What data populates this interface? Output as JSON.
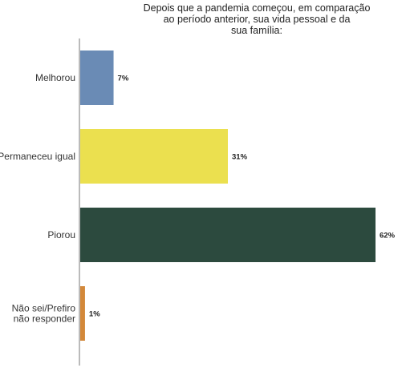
{
  "chart_data": {
    "type": "bar",
    "orientation": "horizontal",
    "title_lines": [
      "Depois que a pandemia começou, em comparação",
      "ao período anterior, sua vida pessoal e da",
      "sua família:"
    ],
    "categories": [
      [
        "Melhorou"
      ],
      [
        "Permaneceu igual"
      ],
      [
        "Piorou"
      ],
      [
        "Não sei/Prefiro",
        "não responder"
      ]
    ],
    "values": [
      7,
      31,
      62,
      1
    ],
    "value_labels": [
      "7%",
      "31%",
      "62%",
      "1%"
    ],
    "colors": [
      "#6a8bb5",
      "#ebe04f",
      "#2c4a3e",
      "#d3883a"
    ],
    "xlim": [
      0,
      62
    ],
    "grid": false,
    "legend": "none"
  }
}
